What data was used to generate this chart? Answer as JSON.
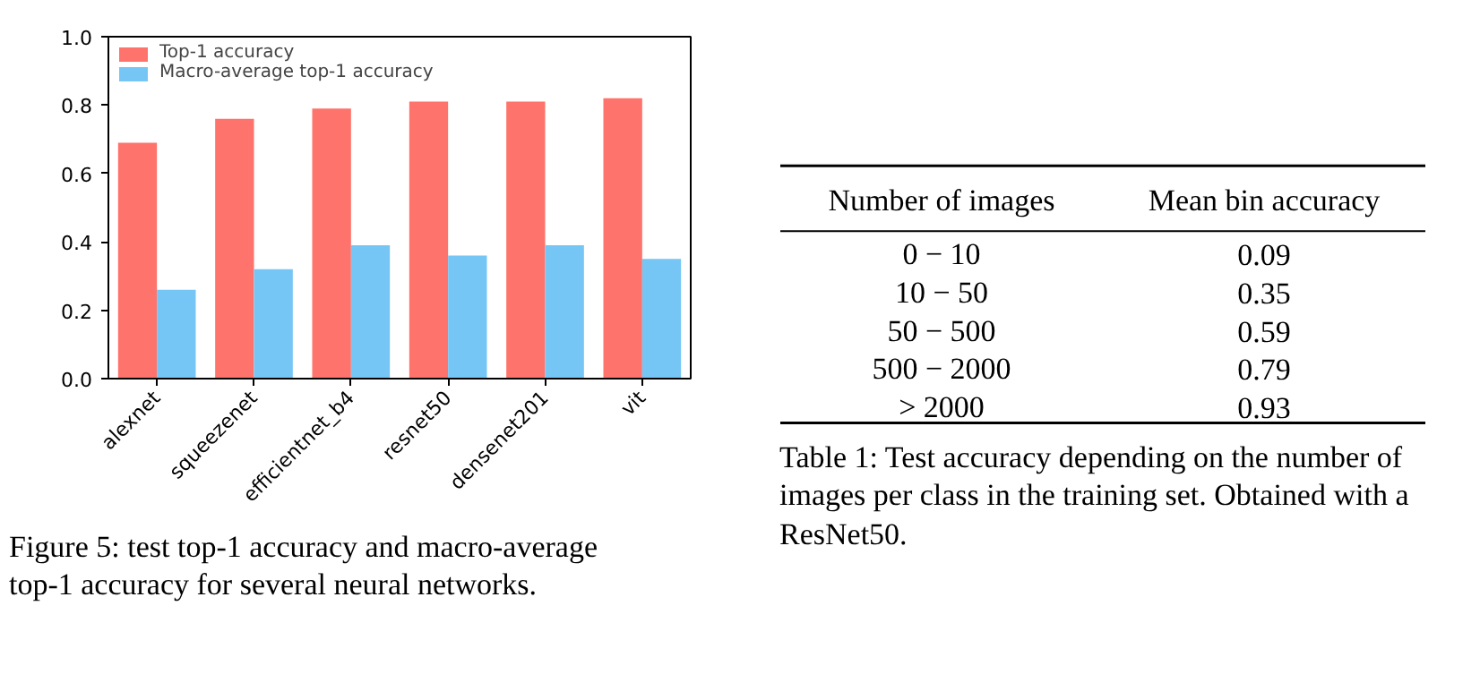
{
  "chart_data": [
    {
      "type": "bar",
      "categories": [
        "alexnet",
        "squeezenet",
        "efficientnet_b4",
        "resnet50",
        "densenet201",
        "vit"
      ],
      "series": [
        {
          "name": "Top-1 accuracy",
          "color": "#fe736b",
          "values": [
            0.69,
            0.76,
            0.79,
            0.81,
            0.81,
            0.82
          ]
        },
        {
          "name": "Macro-average top-1 accuracy",
          "color": "#76c6f5",
          "values": [
            0.26,
            0.32,
            0.39,
            0.36,
            0.39,
            0.35
          ]
        }
      ],
      "ylim": [
        0,
        1
      ],
      "yticks": [
        {
          "value": 0,
          "label": "0.0"
        },
        0.2,
        0.4,
        0.6,
        0.8,
        {
          "value": 1,
          "label": "1.0"
        }
      ],
      "legend": "top left",
      "annotations": [
        "Figure 5: test top-1 accuracy and macro-average top-1 accuracy for several neural networks."
      ]
    },
    {
      "type": "other",
      "xlabel": "Number of images",
      "ylabel": "Mean bin accuracy",
      "categories": [
        "0 − 10",
        "10 − 50",
        "50 − 500",
        "500 − 2000",
        "> 2000"
      ],
      "values": [
        0.09,
        0.35,
        0.59,
        0.79,
        0.93
      ],
      "data_labels": true,
      "annotations": [
        "Table 1: Test accuracy depending on the number of images per class in the training set. Obtained with a ResNet50."
      ]
    }
  ]
}
